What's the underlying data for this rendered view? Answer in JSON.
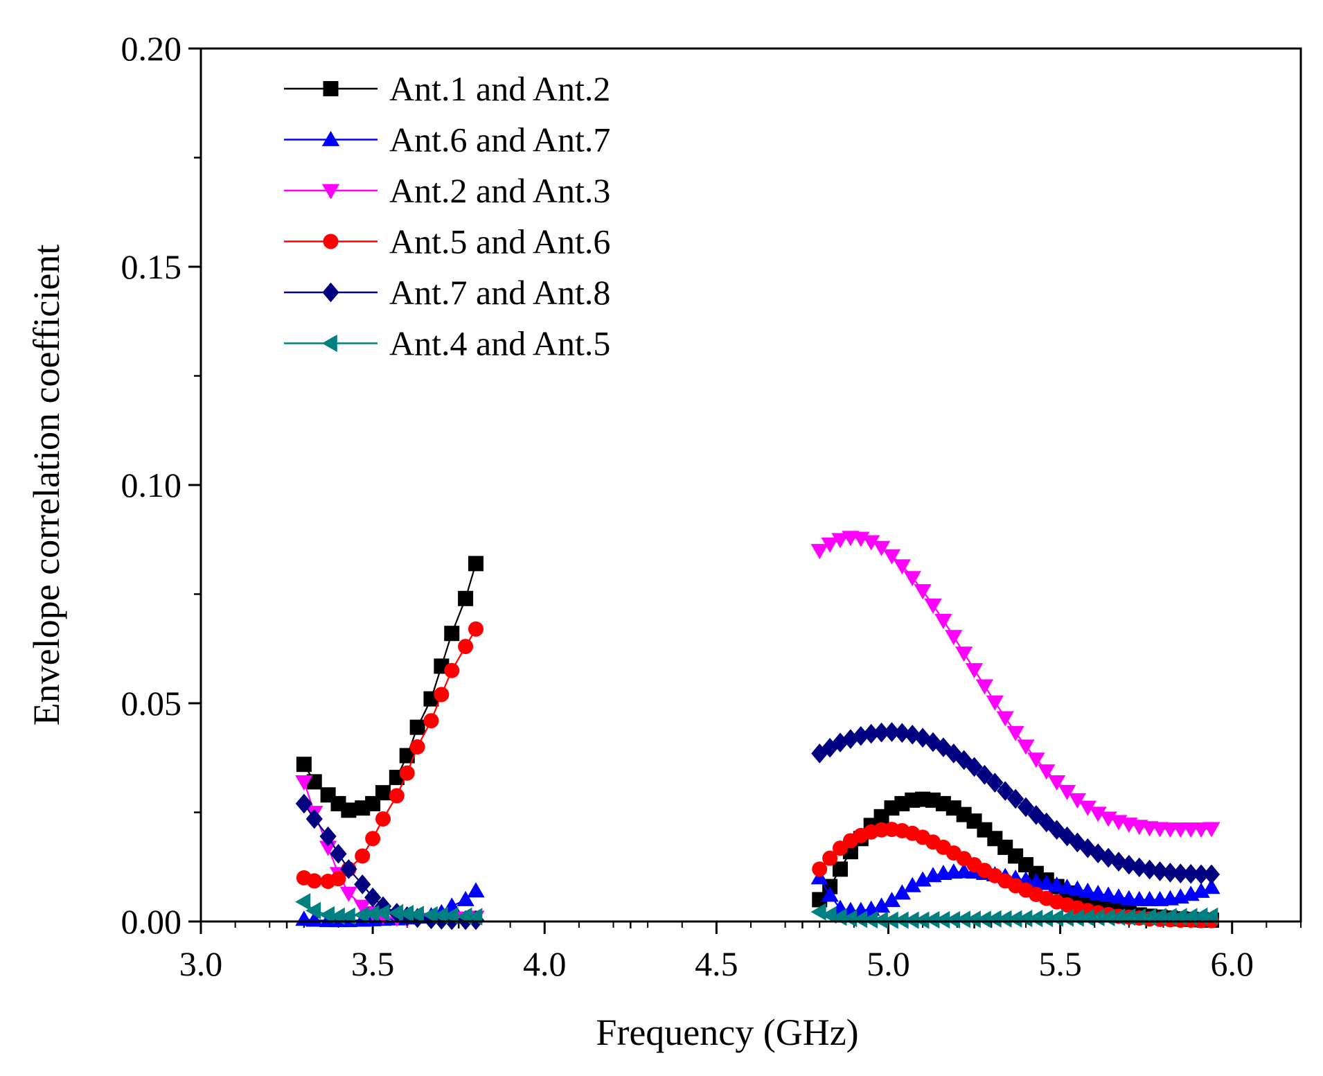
{
  "chart_data": {
    "type": "line",
    "title": "",
    "xlabel": "Frequency (GHz)",
    "ylabel": "Envelope correlation coefficient",
    "xlim": [
      3.0,
      6.2
    ],
    "ylim": [
      0.0,
      0.2
    ],
    "x_ticks": [
      "3.0",
      "3.5",
      "4.0",
      "4.5",
      "5.0",
      "5.5",
      "6.0"
    ],
    "y_ticks": [
      "0.00",
      "0.05",
      "0.10",
      "0.15",
      "0.20"
    ],
    "grid": false,
    "legend_position": "top-left",
    "series": [
      {
        "name": "Ant.1 and Ant.2",
        "color": "#000000",
        "marker": "square",
        "segments": [
          {
            "x": [
              3.3,
              3.33,
              3.37,
              3.4,
              3.43,
              3.47,
              3.5,
              3.53,
              3.57,
              3.6,
              3.63,
              3.67,
              3.7,
              3.73,
              3.77,
              3.8
            ],
            "y": [
              0.036,
              0.032,
              0.029,
              0.027,
              0.0255,
              0.026,
              0.027,
              0.0295,
              0.033,
              0.038,
              0.0445,
              0.051,
              0.0585,
              0.066,
              0.074,
              0.082
            ]
          },
          {
            "x": [
              4.8,
              4.83,
              4.86,
              4.89,
              4.92,
              4.95,
              4.98,
              5.01,
              5.04,
              5.07,
              5.1,
              5.13,
              5.16,
              5.19,
              5.22,
              5.25,
              5.28,
              5.31,
              5.34,
              5.37,
              5.4,
              5.43,
              5.46,
              5.49,
              5.52,
              5.55,
              5.58,
              5.61,
              5.64,
              5.67,
              5.7,
              5.73,
              5.76,
              5.79,
              5.82,
              5.85,
              5.88,
              5.91,
              5.94
            ],
            "y": [
              0.005,
              0.008,
              0.012,
              0.016,
              0.019,
              0.022,
              0.024,
              0.026,
              0.027,
              0.0278,
              0.028,
              0.0278,
              0.027,
              0.026,
              0.0245,
              0.023,
              0.021,
              0.019,
              0.017,
              0.015,
              0.013,
              0.011,
              0.0095,
              0.008,
              0.0065,
              0.0055,
              0.0045,
              0.0038,
              0.003,
              0.0025,
              0.002,
              0.0015,
              0.0012,
              0.001,
              0.0008,
              0.0006,
              0.0005,
              0.0004,
              0.0003
            ]
          }
        ]
      },
      {
        "name": "Ant.6 and Ant.7",
        "color": "#0000ff",
        "marker": "triangle-up",
        "segments": [
          {
            "x": [
              3.3,
              3.33,
              3.37,
              3.4,
              3.43,
              3.47,
              3.5,
              3.53,
              3.57,
              3.6,
              3.63,
              3.67,
              3.7,
              3.73,
              3.77,
              3.8
            ],
            "y": [
              0.0005,
              0.0003,
              0.0002,
              0.0002,
              0.0002,
              0.0003,
              0.0004,
              0.0005,
              0.0006,
              0.0008,
              0.001,
              0.0013,
              0.002,
              0.0035,
              0.005,
              0.007
            ]
          },
          {
            "x": [
              4.8,
              4.83,
              4.86,
              4.89,
              4.92,
              4.95,
              4.98,
              5.01,
              5.04,
              5.07,
              5.1,
              5.13,
              5.16,
              5.19,
              5.22,
              5.25,
              5.28,
              5.31,
              5.34,
              5.37,
              5.4,
              5.43,
              5.46,
              5.49,
              5.52,
              5.55,
              5.58,
              5.61,
              5.64,
              5.67,
              5.7,
              5.73,
              5.76,
              5.79,
              5.82,
              5.85,
              5.88,
              5.91,
              5.94
            ],
            "y": [
              0.01,
              0.006,
              0.003,
              0.0025,
              0.0025,
              0.0028,
              0.0035,
              0.0048,
              0.0065,
              0.0082,
              0.0095,
              0.0105,
              0.011,
              0.0113,
              0.0114,
              0.0113,
              0.011,
              0.0107,
              0.0103,
              0.0099,
              0.0095,
              0.0091,
              0.0087,
              0.0083,
              0.0078,
              0.0074,
              0.0069,
              0.0064,
              0.006,
              0.0056,
              0.0052,
              0.005,
              0.005,
              0.005,
              0.0052,
              0.0056,
              0.0062,
              0.0069,
              0.0078
            ]
          }
        ]
      },
      {
        "name": "Ant.2 and Ant.3",
        "color": "#ff00ff",
        "marker": "triangle-down",
        "segments": [
          {
            "x": [
              3.3,
              3.33,
              3.37,
              3.4,
              3.43,
              3.47,
              3.5,
              3.53,
              3.57,
              3.6,
              3.63,
              3.67,
              3.7,
              3.73,
              3.77,
              3.8
            ],
            "y": [
              0.032,
              0.025,
              0.017,
              0.011,
              0.0065,
              0.0035,
              0.002,
              0.0012,
              0.0008,
              0.0006,
              0.0005,
              0.0005,
              0.0005,
              0.0006,
              0.0008,
              0.001
            ]
          },
          {
            "x": [
              4.8,
              4.83,
              4.86,
              4.89,
              4.92,
              4.95,
              4.98,
              5.01,
              5.04,
              5.07,
              5.1,
              5.13,
              5.16,
              5.19,
              5.22,
              5.25,
              5.28,
              5.31,
              5.34,
              5.37,
              5.4,
              5.43,
              5.46,
              5.49,
              5.52,
              5.55,
              5.58,
              5.61,
              5.64,
              5.67,
              5.7,
              5.73,
              5.76,
              5.79,
              5.82,
              5.85,
              5.88,
              5.91,
              5.94
            ],
            "y": [
              0.085,
              0.0865,
              0.0875,
              0.088,
              0.0878,
              0.087,
              0.0857,
              0.0838,
              0.0815,
              0.0788,
              0.0758,
              0.0725,
              0.069,
              0.0653,
              0.0615,
              0.0577,
              0.054,
              0.0503,
              0.0467,
              0.0433,
              0.0402,
              0.0372,
              0.0345,
              0.032,
              0.0298,
              0.0279,
              0.0262,
              0.0248,
              0.0237,
              0.0229,
              0.0223,
              0.0218,
              0.0215,
              0.0213,
              0.0212,
              0.0212,
              0.0212,
              0.0212,
              0.0213
            ]
          }
        ]
      },
      {
        "name": "Ant.5 and Ant.6",
        "color": "#ff0000",
        "marker": "circle",
        "segments": [
          {
            "x": [
              3.3,
              3.33,
              3.37,
              3.4,
              3.43,
              3.47,
              3.5,
              3.53,
              3.57,
              3.6,
              3.63,
              3.67,
              3.7,
              3.73,
              3.77,
              3.8
            ],
            "y": [
              0.01,
              0.0093,
              0.0092,
              0.0098,
              0.012,
              0.015,
              0.019,
              0.0235,
              0.0288,
              0.034,
              0.04,
              0.046,
              0.052,
              0.0575,
              0.063,
              0.067
            ]
          },
          {
            "x": [
              4.8,
              4.83,
              4.86,
              4.89,
              4.92,
              4.95,
              4.98,
              5.01,
              5.04,
              5.07,
              5.1,
              5.13,
              5.16,
              5.19,
              5.22,
              5.25,
              5.28,
              5.31,
              5.34,
              5.37,
              5.4,
              5.43,
              5.46,
              5.49,
              5.52,
              5.55,
              5.58,
              5.61,
              5.64,
              5.67,
              5.7,
              5.73,
              5.76,
              5.79,
              5.82,
              5.85,
              5.88,
              5.91,
              5.94
            ],
            "y": [
              0.012,
              0.0145,
              0.0168,
              0.0185,
              0.0197,
              0.0205,
              0.021,
              0.0211,
              0.0208,
              0.0202,
              0.0193,
              0.0182,
              0.017,
              0.0157,
              0.0144,
              0.013,
              0.0117,
              0.0105,
              0.0093,
              0.0082,
              0.0072,
              0.0062,
              0.0053,
              0.0045,
              0.0038,
              0.0031,
              0.0025,
              0.002,
              0.0016,
              0.0012,
              0.001,
              0.0008,
              0.0006,
              0.0005,
              0.0004,
              0.0003,
              0.0003,
              0.0002,
              0.0002
            ]
          }
        ]
      },
      {
        "name": "Ant.7 and Ant.8",
        "color": "#000080",
        "marker": "diamond",
        "segments": [
          {
            "x": [
              3.3,
              3.33,
              3.37,
              3.4,
              3.43,
              3.47,
              3.5,
              3.53,
              3.57,
              3.6,
              3.63,
              3.67,
              3.7,
              3.73,
              3.77,
              3.8
            ],
            "y": [
              0.027,
              0.0235,
              0.0195,
              0.0155,
              0.012,
              0.0085,
              0.0055,
              0.0035,
              0.002,
              0.0012,
              0.0008,
              0.0005,
              0.0004,
              0.0003,
              0.0003,
              0.0003
            ]
          },
          {
            "x": [
              4.8,
              4.83,
              4.86,
              4.89,
              4.92,
              4.95,
              4.98,
              5.01,
              5.04,
              5.07,
              5.1,
              5.13,
              5.16,
              5.19,
              5.22,
              5.25,
              5.28,
              5.31,
              5.34,
              5.37,
              5.4,
              5.43,
              5.46,
              5.49,
              5.52,
              5.55,
              5.58,
              5.61,
              5.64,
              5.67,
              5.7,
              5.73,
              5.76,
              5.79,
              5.82,
              5.85,
              5.88,
              5.91,
              5.94
            ],
            "y": [
              0.0385,
              0.0398,
              0.041,
              0.0418,
              0.0425,
              0.043,
              0.0433,
              0.0434,
              0.0432,
              0.0428,
              0.0421,
              0.0411,
              0.0399,
              0.0385,
              0.037,
              0.0354,
              0.0336,
              0.0318,
              0.0299,
              0.0281,
              0.0262,
              0.0244,
              0.0227,
              0.021,
              0.0195,
              0.0181,
              0.0168,
              0.0156,
              0.0146,
              0.0137,
              0.013,
              0.0124,
              0.0119,
              0.0115,
              0.0112,
              0.011,
              0.0109,
              0.0108,
              0.0108
            ]
          }
        ]
      },
      {
        "name": "Ant.4 and Ant.5",
        "color": "#008080",
        "marker": "triangle-left",
        "segments": [
          {
            "x": [
              3.3,
              3.33,
              3.37,
              3.4,
              3.43,
              3.47,
              3.5,
              3.53,
              3.57,
              3.6,
              3.63,
              3.67,
              3.7,
              3.73,
              3.77,
              3.8
            ],
            "y": [
              0.0045,
              0.0025,
              0.0015,
              0.0012,
              0.0012,
              0.0015,
              0.0018,
              0.002,
              0.002,
              0.0018,
              0.0016,
              0.0015,
              0.0014,
              0.0013,
              0.0012,
              0.0011
            ]
          },
          {
            "x": [
              4.8,
              4.83,
              4.86,
              4.89,
              4.92,
              4.95,
              4.98,
              5.01,
              5.04,
              5.07,
              5.1,
              5.13,
              5.16,
              5.19,
              5.22,
              5.25,
              5.28,
              5.31,
              5.34,
              5.37,
              5.4,
              5.43,
              5.46,
              5.49,
              5.52,
              5.55,
              5.58,
              5.61,
              5.64,
              5.67,
              5.7,
              5.73,
              5.76,
              5.79,
              5.82,
              5.85,
              5.88,
              5.91,
              5.94
            ],
            "y": [
              0.0022,
              0.0015,
              0.001,
              0.0007,
              0.0005,
              0.0004,
              0.0003,
              0.0003,
              0.0003,
              0.0003,
              0.0003,
              0.0004,
              0.0004,
              0.0004,
              0.0005,
              0.0005,
              0.0005,
              0.0006,
              0.0006,
              0.0006,
              0.0007,
              0.0007,
              0.0007,
              0.0008,
              0.0008,
              0.0008,
              0.0009,
              0.0009,
              0.0009,
              0.001,
              0.001,
              0.001,
              0.001,
              0.0011,
              0.0011,
              0.0011,
              0.0011,
              0.0012,
              0.0012
            ]
          }
        ]
      }
    ]
  }
}
